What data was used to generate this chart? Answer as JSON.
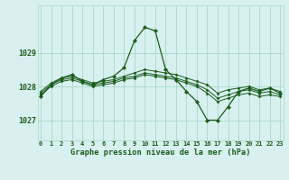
{
  "background_color": "#d8f0f0",
  "grid_color": "#a8d8c8",
  "line_color": "#1a5c1a",
  "marker_color": "#1a5c1a",
  "title": "Graphe pression niveau de la mer (hPa)",
  "xlabel_ticks": [
    0,
    1,
    2,
    3,
    4,
    5,
    6,
    7,
    8,
    9,
    10,
    11,
    12,
    13,
    14,
    15,
    16,
    17,
    18,
    19,
    20,
    21,
    22,
    23
  ],
  "yticks": [
    1027,
    1028,
    1029
  ],
  "ylim": [
    1026.4,
    1030.4
  ],
  "xlim": [
    -0.3,
    23.3
  ],
  "series": [
    [
      1027.7,
      1028.05,
      1028.25,
      1028.35,
      1028.15,
      1028.05,
      1028.2,
      1028.3,
      1028.55,
      1029.35,
      1029.75,
      1029.65,
      1028.5,
      1028.2,
      1027.85,
      1027.55,
      1027.0,
      1027.0,
      1027.4,
      1027.85,
      1027.95,
      1027.85,
      1027.95,
      1027.8
    ],
    [
      1027.85,
      1028.1,
      1028.25,
      1028.3,
      1028.2,
      1028.1,
      1028.15,
      1028.2,
      1028.3,
      1028.4,
      1028.5,
      1028.45,
      1028.4,
      1028.35,
      1028.25,
      1028.15,
      1028.05,
      1027.8,
      1027.9,
      1027.95,
      1028.0,
      1027.9,
      1027.95,
      1027.85
    ],
    [
      1027.8,
      1028.05,
      1028.2,
      1028.25,
      1028.15,
      1028.05,
      1028.1,
      1028.15,
      1028.25,
      1028.3,
      1028.4,
      1028.35,
      1028.3,
      1028.25,
      1028.15,
      1028.05,
      1027.9,
      1027.65,
      1027.75,
      1027.85,
      1027.9,
      1027.8,
      1027.85,
      1027.75
    ],
    [
      1027.75,
      1028.0,
      1028.15,
      1028.2,
      1028.1,
      1028.0,
      1028.05,
      1028.1,
      1028.2,
      1028.25,
      1028.35,
      1028.3,
      1028.25,
      1028.2,
      1028.1,
      1028.0,
      1027.8,
      1027.55,
      1027.65,
      1027.75,
      1027.8,
      1027.7,
      1027.75,
      1027.7
    ]
  ]
}
